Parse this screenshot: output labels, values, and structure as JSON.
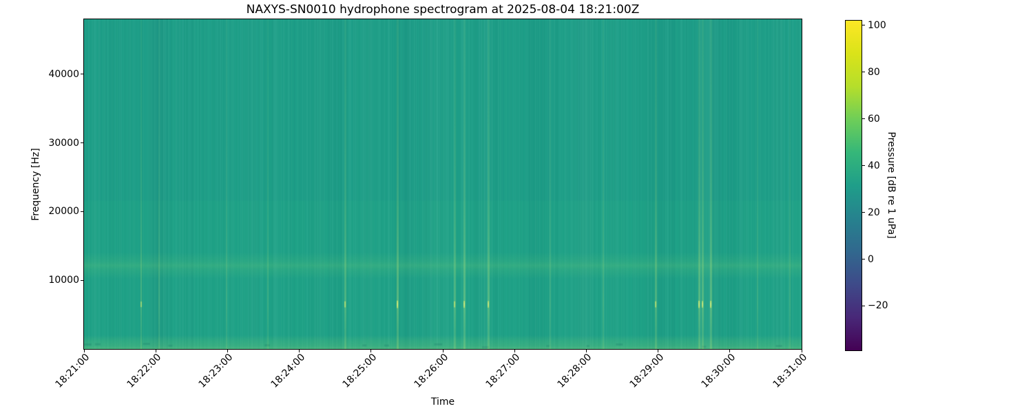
{
  "figure": {
    "title": "NAXYS-SN0010 hydrophone spectrogram at 2025-08-04 18:21:00Z",
    "xlabel": "Time",
    "ylabel": "Frequency [Hz]"
  },
  "axes": {
    "x_ticks": [
      "18:21:00",
      "18:22:00",
      "18:23:00",
      "18:24:00",
      "18:25:00",
      "18:26:00",
      "18:27:00",
      "18:28:00",
      "18:29:00",
      "18:30:00",
      "18:31:00"
    ],
    "y_ticks": [
      "10000",
      "20000",
      "30000",
      "40000"
    ],
    "y_tick_values": [
      10000,
      20000,
      30000,
      40000
    ],
    "ylim_hz": [
      0,
      48000
    ]
  },
  "colorbar": {
    "label": "Pressure [dB re 1 uPa]",
    "ticks": [
      "100",
      "80",
      "60",
      "40",
      "20",
      "0",
      "−20"
    ],
    "tick_values": [
      100,
      80,
      60,
      40,
      20,
      0,
      -20
    ],
    "vmin": -39,
    "vmax": 102,
    "colormap": "viridis"
  },
  "chart_data": {
    "type": "heatmap",
    "subtype": "spectrogram",
    "title": "NAXYS-SN0010 hydrophone spectrogram at 2025-08-04 18:21:00Z",
    "xlabel": "Time",
    "ylabel": "Frequency [Hz]",
    "value_label": "Pressure [dB re 1 uPa]",
    "colormap": "viridis",
    "time_start": "18:21:00",
    "time_end": "18:31:00",
    "time_span_s": 600,
    "x_tick_interval_s": 60,
    "freq_range_hz": [
      0,
      48000
    ],
    "value_range_db": [
      -39,
      102
    ],
    "background_level_db": 50,
    "bands": [
      {
        "name": "mid-frequency-band",
        "freq_hz": [
          10800,
          13500
        ],
        "peak_freq_hz": 12200,
        "level_db": 56
      },
      {
        "name": "low-frequency-band",
        "freq_hz": [
          0,
          1600
        ],
        "level_db": 58
      }
    ],
    "transients": [
      {
        "time": "18:21:48",
        "peak_freq_hz": 6500,
        "intensity": 0.5
      },
      {
        "time": "18:22:03",
        "peak_freq_hz": 6500,
        "intensity": 0.3
      },
      {
        "time": "18:22:59",
        "peak_freq_hz": 6500,
        "intensity": 0.2
      },
      {
        "time": "18:23:34",
        "peak_freq_hz": 6500,
        "intensity": 0.25
      },
      {
        "time": "18:24:38",
        "peak_freq_hz": 6500,
        "intensity": 0.6
      },
      {
        "time": "18:25:22",
        "peak_freq_hz": 6500,
        "intensity": 0.85
      },
      {
        "time": "18:26:10",
        "peak_freq_hz": 6500,
        "intensity": 0.6
      },
      {
        "time": "18:26:18",
        "peak_freq_hz": 6500,
        "intensity": 0.75
      },
      {
        "time": "18:26:38",
        "peak_freq_hz": 6500,
        "intensity": 0.7
      },
      {
        "time": "18:27:30",
        "peak_freq_hz": 6500,
        "intensity": 0.2
      },
      {
        "time": "18:28:14",
        "peak_freq_hz": 6500,
        "intensity": 0.3
      },
      {
        "time": "18:28:58",
        "peak_freq_hz": 6500,
        "intensity": 0.6
      },
      {
        "time": "18:29:34",
        "peak_freq_hz": 6500,
        "intensity": 0.8
      },
      {
        "time": "18:29:37",
        "peak_freq_hz": 6500,
        "intensity": 0.7
      },
      {
        "time": "18:29:44",
        "peak_freq_hz": 6500,
        "intensity": 0.75
      },
      {
        "time": "18:30:23",
        "peak_freq_hz": 6500,
        "intensity": 0.2
      },
      {
        "time": "18:30:50",
        "peak_freq_hz": 6500,
        "intensity": 0.25
      }
    ]
  },
  "colors": {
    "background_teal": "#1fa287",
    "band_green": "#2fb07e",
    "transient_bright": "#cfe75c",
    "colormap_min": "#440154",
    "colormap_max": "#fde725",
    "axis_color": "#000000",
    "figure_background": "#ffffff"
  }
}
